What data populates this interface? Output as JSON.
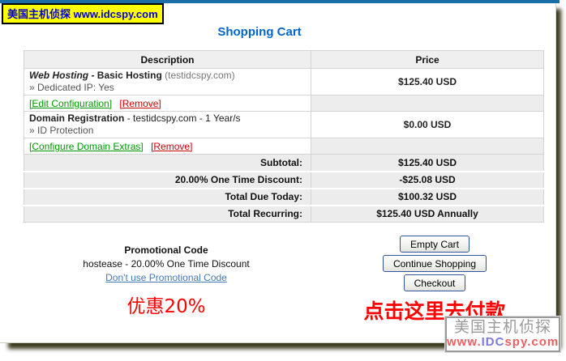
{
  "badge": {
    "text": "美国主机侦探 www.idcspy.com"
  },
  "title": "Shopping Cart",
  "colors": {
    "top_bar": "#1c6ea8",
    "title_blue": "#0066cc",
    "badge_bg": "#ffff00",
    "badge_text": "#0000cc",
    "link_green": "#009900",
    "link_red": "#cc0000",
    "promo_link_blue": "#4379b8",
    "annotation_red": "#ff0000",
    "shadow_olive": "#3b3b20"
  },
  "cart_table": {
    "headers": [
      "Description",
      "Price"
    ],
    "items": [
      {
        "product": "Web Hosting",
        "plan": "- Basic Hosting",
        "note": "(testidcspy.com)",
        "option": "» Dedicated IP: Yes",
        "price": "$125.40 USD",
        "link_edit": "[Edit Configuration]",
        "link_remove": "[Remove]"
      },
      {
        "product": "Domain Registration",
        "detail": "- testidcspy.com - 1 Year/s",
        "option": "» ID Protection",
        "price": "$0.00 USD",
        "link_edit": "[Configure Domain Extras]",
        "link_remove": "[Remove]"
      }
    ],
    "totals": [
      {
        "label": "Subtotal:",
        "value": "$125.40 USD"
      },
      {
        "label": "20.00% One Time Discount:",
        "value": "-$25.08 USD"
      },
      {
        "label": "Total Due Today:",
        "value": "$100.32 USD"
      },
      {
        "label": "Total Recurring:",
        "value": "$125.40 USD Annually"
      }
    ]
  },
  "promo": {
    "title": "Promotional Code",
    "detail": "hostease - 20.00% One Time Discount",
    "link": "Don't use Promotional Code",
    "annotation": "优惠20%"
  },
  "actions": {
    "buttons": [
      "Empty Cart",
      "Continue Shopping",
      "Checkout"
    ],
    "annotation": "点击这里去付款"
  },
  "watermark": {
    "line1": "美国主机侦探",
    "url_www": "www.",
    "url_idc": "IDC",
    "url_spy": "spy",
    "url_com": ".com"
  }
}
